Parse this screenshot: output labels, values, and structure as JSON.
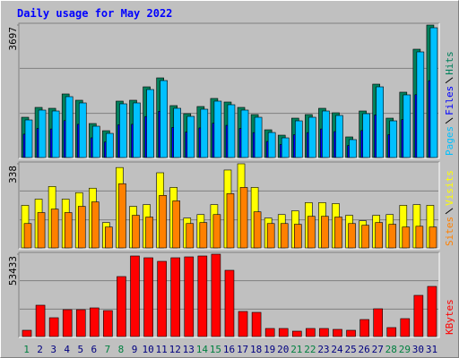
{
  "title": "Daily usage for May 2022",
  "chart_data": [
    {
      "type": "bar",
      "ylim": [
        0,
        3697
      ],
      "yticks": [
        3697
      ],
      "series": [
        {
          "name": "Hits",
          "color": "#00805c",
          "values": [
            1124,
            1399,
            1374,
            1774,
            1599,
            949,
            749,
            1574,
            1599,
            1973,
            2223,
            1449,
            1224,
            1424,
            1649,
            1549,
            1399,
            1199,
            774,
            624,
            1099,
            1199,
            1374,
            1249,
            575,
            1299,
            2048,
            1099,
            1824,
            3023,
            3697
          ]
        },
        {
          "name": "Files",
          "color": "#0000ff",
          "values": [
            652,
            811,
            797,
            1029,
            927,
            550,
            434,
            913,
            927,
            1144,
            1289,
            840,
            710,
            826,
            956,
            898,
            811,
            695,
            449,
            362,
            637,
            695,
            797,
            724,
            334,
            753,
            1188,
            637,
            1058,
            1753,
            2144
          ]
        },
        {
          "name": "Pages",
          "color": "#00c0ff",
          "values": [
            1049,
            1324,
            1299,
            1699,
            1524,
            874,
            674,
            1499,
            1524,
            1898,
            2148,
            1374,
            1149,
            1349,
            1574,
            1474,
            1324,
            1124,
            699,
            549,
            1024,
            1124,
            1299,
            1174,
            500,
            1224,
            1973,
            1024,
            1749,
            2948,
            3622
          ]
        }
      ]
    },
    {
      "type": "bar",
      "ylim": [
        0,
        338
      ],
      "yticks": [
        338
      ],
      "series": [
        {
          "name": "Visits",
          "color": "#ffff00",
          "values": [
            171,
            196,
            247,
            196,
            222,
            240,
            102,
            323,
            167,
            174,
            302,
            243,
            120,
            134,
            174,
            313,
            338,
            243,
            120,
            134,
            149,
            182,
            182,
            178,
            131,
            109,
            131,
            134,
            171,
            174,
            171
          ]
        },
        {
          "name": "Sites",
          "color": "#ff8000",
          "values": [
            98,
            142,
            156,
            142,
            167,
            185,
            84,
            258,
            131,
            124,
            211,
            189,
            98,
            102,
            134,
            218,
            243,
            145,
            98,
            98,
            95,
            127,
            127,
            124,
            98,
            91,
            102,
            95,
            84,
            87,
            84
          ]
        }
      ]
    },
    {
      "type": "bar",
      "ylim": [
        0,
        53433
      ],
      "yticks": [
        53433
      ],
      "categories": [
        "1",
        "2",
        "3",
        "4",
        "5",
        "6",
        "7",
        "8",
        "9",
        "10",
        "11",
        "12",
        "13",
        "14",
        "15",
        "16",
        "17",
        "18",
        "19",
        "20",
        "21",
        "22",
        "23",
        "24",
        "25",
        "26",
        "27",
        "28",
        "29",
        "30",
        "31"
      ],
      "category_colors": [
        "#008040",
        "#000080",
        "#000080",
        "#000080",
        "#000080",
        "#000080",
        "#008040",
        "#008040",
        "#000080",
        "#000080",
        "#000080",
        "#000080",
        "#000080",
        "#008040",
        "#008040",
        "#000080",
        "#000080",
        "#000080",
        "#000080",
        "#000080",
        "#008040",
        "#008040",
        "#000080",
        "#000080",
        "#000080",
        "#000080",
        "#000080",
        "#008040",
        "#008040",
        "#000080",
        "#000080"
      ],
      "series": [
        {
          "name": "KBytes",
          "color": "#ff0000",
          "values": [
            4066,
            20330,
            12198,
            17424,
            17424,
            18586,
            16843,
            38917,
            52276,
            51114,
            48791,
            51114,
            51695,
            52276,
            53433,
            42983,
            16264,
            15683,
            5228,
            5228,
            3485,
            5228,
            5228,
            4647,
            4066,
            11036,
            18007,
            5809,
            11617,
            26719,
            32528
          ]
        }
      ]
    }
  ]
}
